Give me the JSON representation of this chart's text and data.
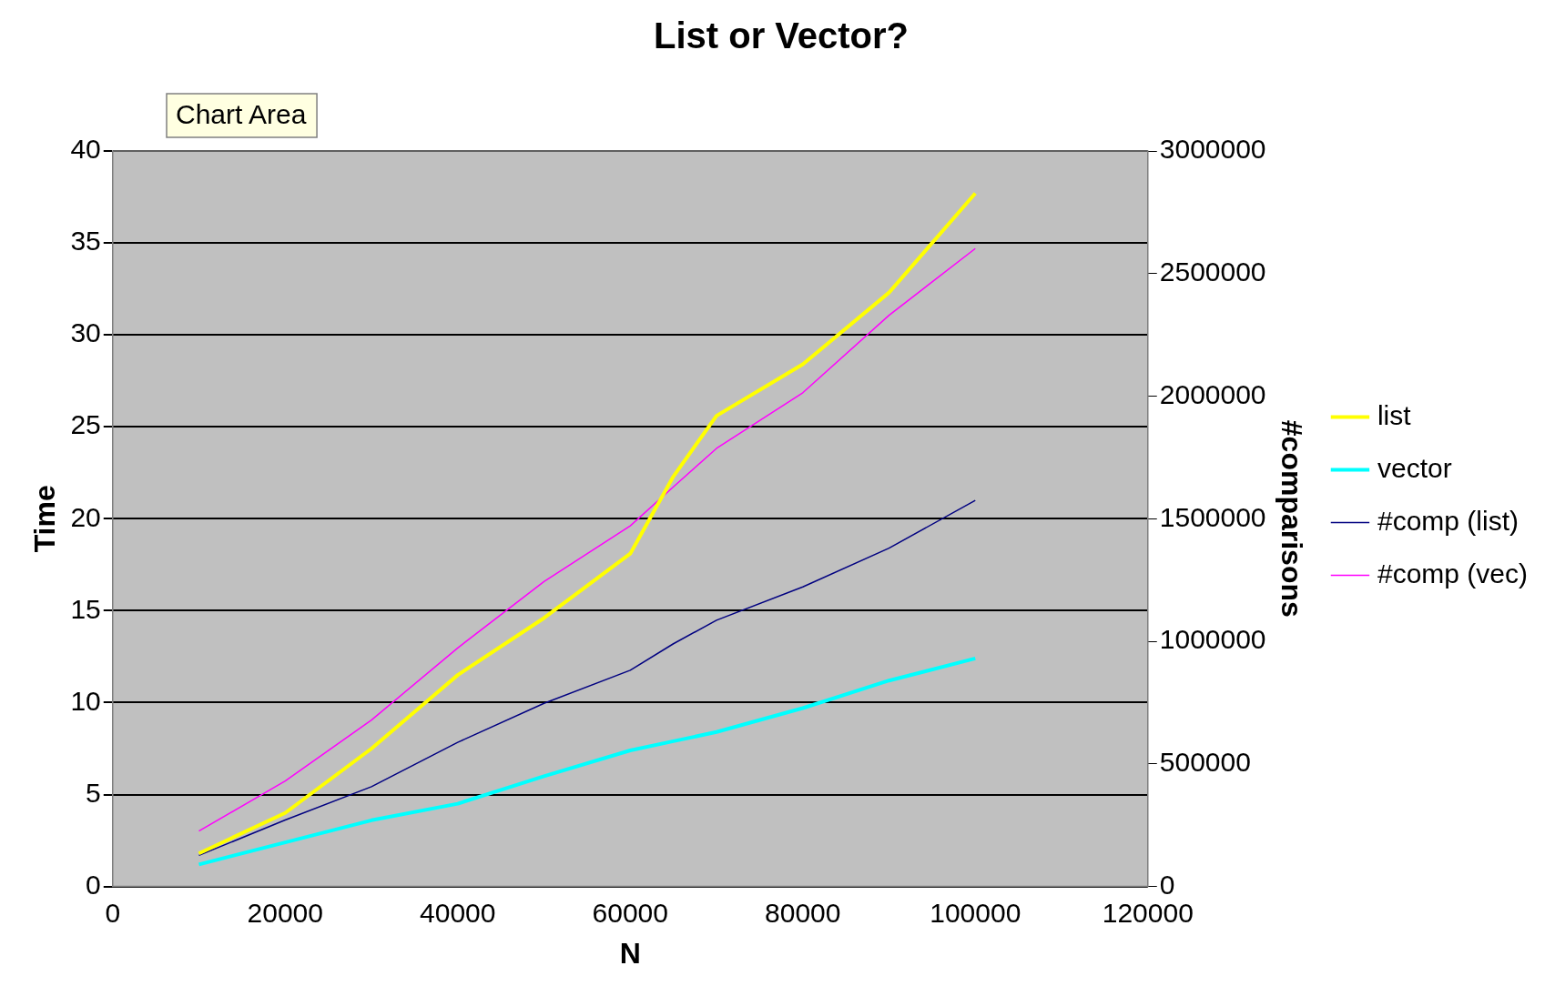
{
  "chart_data": {
    "type": "line",
    "title": "List or Vector?",
    "xlabel": "N",
    "ylabel": "Time",
    "y2label": "#comparisons",
    "annotations": [
      "Chart Area"
    ],
    "x": [
      10000,
      20000,
      30000,
      40000,
      50000,
      60000,
      65000,
      70000,
      80000,
      90000,
      100000
    ],
    "series": [
      {
        "name": "list",
        "color": "#ffff00",
        "values": [
          1.8,
          4.0,
          7.5,
          11.5,
          14.6,
          18.1,
          22.3,
          25.6,
          28.4,
          32.3,
          37.7
        ]
      },
      {
        "name": "vector",
        "color": "#00ffff",
        "values": [
          1.2,
          2.4,
          3.6,
          4.5,
          6.0,
          7.4,
          7.9,
          8.4,
          9.7,
          11.2,
          12.4
        ]
      },
      {
        "name": "#comp (list)",
        "color": "#000080",
        "axis": "y2",
        "values": [
          127000,
          271000,
          407000,
          588000,
          747000,
          882000,
          990000,
          1086000,
          1222000,
          1380000,
          1575000
        ]
      },
      {
        "name": "#comp (vec)",
        "color": "#ff00ff",
        "axis": "y2",
        "values": [
          226000,
          430000,
          679000,
          973000,
          1244000,
          1471000,
          1630000,
          1787000,
          2014000,
          2330000,
          2602000
        ]
      }
    ],
    "xlim": [
      0,
      120000
    ],
    "xticks": [
      0,
      20000,
      40000,
      60000,
      80000,
      100000,
      120000
    ],
    "ylim": [
      0,
      40
    ],
    "yticks": [
      0,
      5,
      10,
      15,
      20,
      25,
      30,
      35,
      40
    ],
    "y2lim": [
      0,
      3000000
    ],
    "y2ticks": [
      0,
      500000,
      1000000,
      1500000,
      2000000,
      2500000,
      3000000
    ],
    "grid": "y",
    "legend": "right",
    "marker": "none",
    "line_style": "solid"
  }
}
